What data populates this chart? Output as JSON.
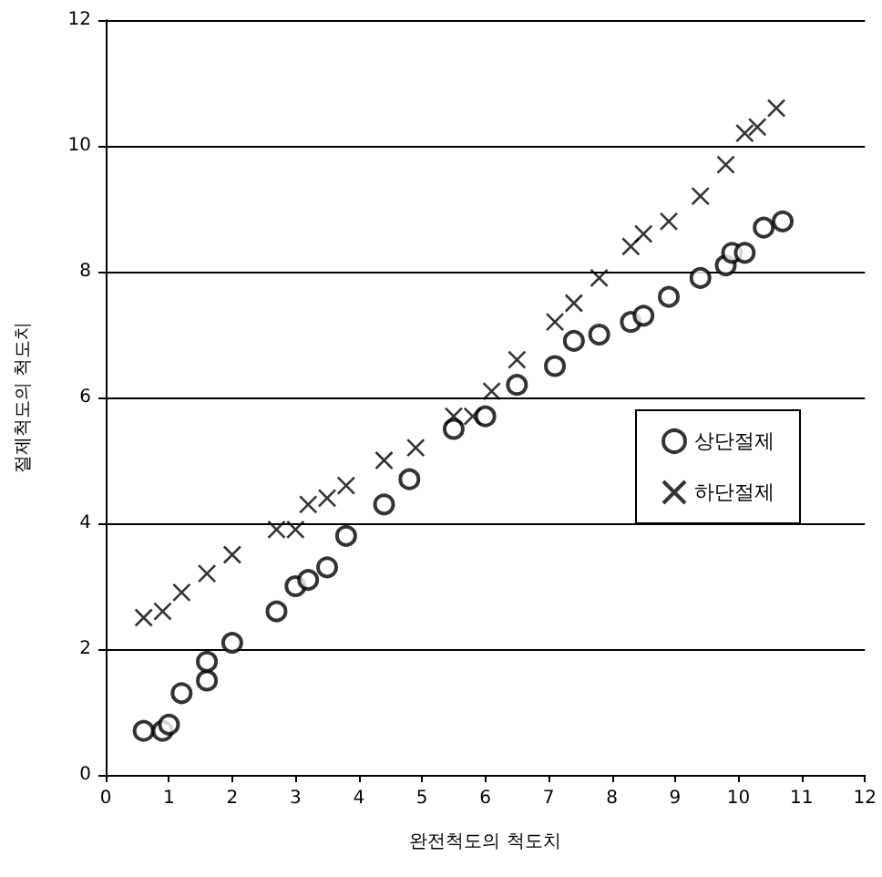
{
  "chart_data": {
    "type": "scatter",
    "xlabel": "완전척도의 척도치",
    "ylabel": "절제척도의 척도치",
    "xlim": [
      0,
      12
    ],
    "xticks": [
      0,
      1,
      2,
      3,
      4,
      5,
      6,
      7,
      8,
      9,
      10,
      11,
      12
    ],
    "ylim": [
      0,
      12
    ],
    "yticks": [
      0,
      2,
      4,
      6,
      8,
      10,
      12
    ],
    "grid": "y",
    "legend": "right",
    "series": [
      {
        "name": "상단절제",
        "color": "#000000",
        "marker": "circle",
        "x": [
          0.6,
          0.9,
          1.0,
          1.2,
          1.6,
          1.6,
          2.0,
          2.7,
          3.0,
          3.2,
          3.5,
          3.8,
          4.4,
          4.8,
          5.5,
          6.0,
          6.5,
          7.1,
          7.4,
          7.8,
          8.3,
          8.5,
          8.9,
          9.4,
          9.8,
          9.9,
          10.1,
          10.4,
          10.7
        ],
        "values": [
          0.7,
          0.7,
          0.8,
          1.3,
          1.5,
          1.8,
          2.1,
          2.6,
          3.0,
          3.1,
          3.3,
          3.8,
          4.3,
          4.7,
          5.5,
          5.7,
          6.2,
          6.5,
          6.9,
          7.0,
          7.2,
          7.3,
          7.6,
          7.9,
          8.1,
          8.3,
          8.3,
          8.7,
          8.8
        ]
      },
      {
        "name": "하단절제",
        "color": "#000000",
        "marker": "cross",
        "x": [
          0.6,
          0.9,
          1.2,
          1.6,
          2.0,
          2.7,
          3.0,
          3.2,
          3.5,
          3.8,
          4.4,
          4.9,
          5.5,
          5.8,
          6.1,
          6.5,
          7.1,
          7.4,
          7.8,
          8.3,
          8.5,
          8.9,
          9.4,
          9.8,
          10.1,
          10.3,
          10.6
        ],
        "values": [
          2.5,
          2.6,
          2.9,
          3.2,
          3.5,
          3.9,
          3.9,
          4.3,
          4.4,
          4.6,
          5.0,
          5.2,
          5.7,
          5.7,
          6.1,
          6.6,
          7.2,
          7.5,
          7.9,
          8.4,
          8.6,
          8.8,
          9.2,
          9.7,
          10.2,
          10.3,
          10.6
        ]
      }
    ]
  }
}
